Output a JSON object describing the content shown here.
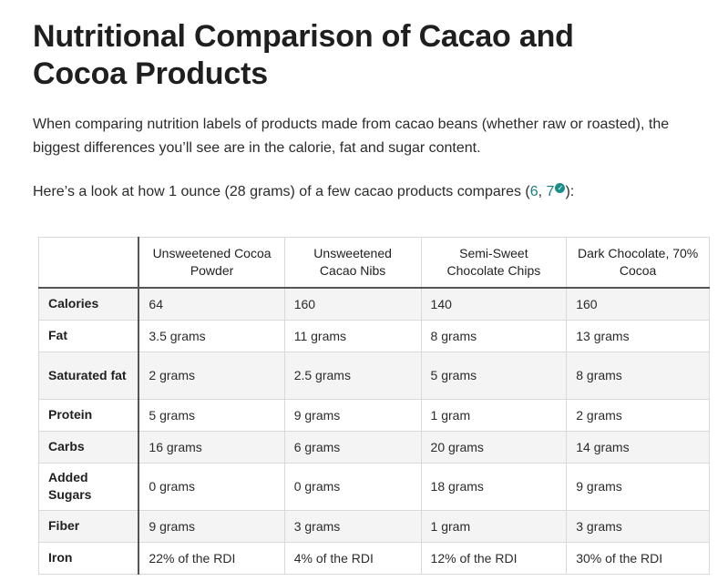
{
  "title": "Nutritional Comparison of Cacao and Cocoa Products",
  "intro": "When comparing nutrition labels of products made from cacao beans (whether raw or roasted), the biggest differences you’ll see are in the calorie, fat and sugar content.",
  "lead": {
    "before": "Here’s a look at how 1 ounce (28 grams) of a few cacao products compares (",
    "ref1": "6",
    "sep": ", ",
    "ref2": "7",
    "check_icon": "✓",
    "after": "):"
  },
  "table": {
    "columns": [
      "Unsweetened Cocoa Powder",
      "Unsweetened Cacao Nibs",
      "Semi-Sweet Chocolate Chips",
      "Dark Chocolate, 70% Cocoa"
    ],
    "rows": [
      {
        "label": "Calories",
        "values": [
          "64",
          "160",
          "140",
          "160"
        ]
      },
      {
        "label": "Fat",
        "values": [
          "3.5 grams",
          "11 grams",
          "8 grams",
          "13 grams"
        ]
      },
      {
        "label": "Saturated fat",
        "values": [
          "2 grams",
          "2.5 grams",
          "5 grams",
          "8 grams"
        ]
      },
      {
        "label": "Protein",
        "values": [
          "5 grams",
          "9 grams",
          "1 gram",
          "2 grams"
        ]
      },
      {
        "label": "Carbs",
        "values": [
          "16 grams",
          "6 grams",
          "20 grams",
          "14 grams"
        ]
      },
      {
        "label": "Added Sugars",
        "values": [
          "0 grams",
          "0 grams",
          "18 grams",
          "9 grams"
        ]
      },
      {
        "label": "Fiber",
        "values": [
          "9 grams",
          "3 grams",
          "1 gram",
          "3 grams"
        ]
      },
      {
        "label": "Iron",
        "values": [
          "22% of the RDI",
          "4% of the RDI",
          "12% of the RDI",
          "30% of the RDI"
        ]
      }
    ]
  }
}
